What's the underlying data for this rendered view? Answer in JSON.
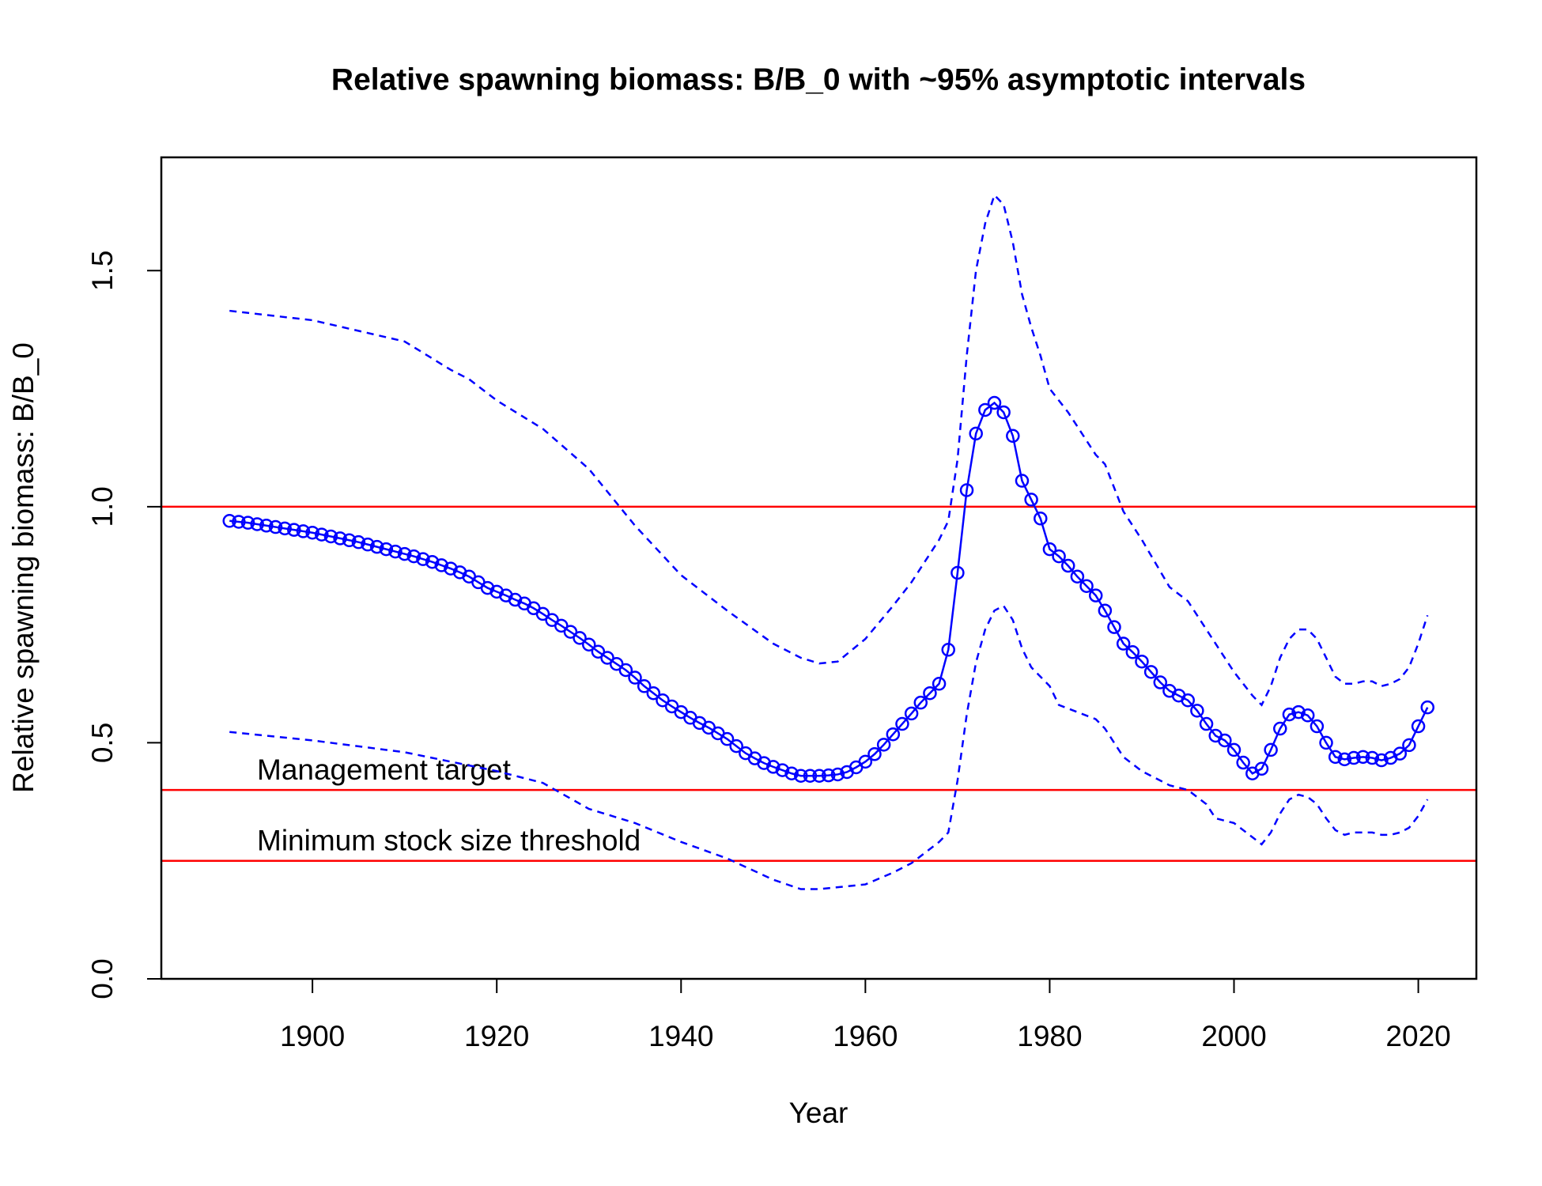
{
  "chart_data": {
    "type": "line",
    "title": "Relative spawning biomass: B/B_0 with ~95% asymptotic intervals",
    "xlabel": "Year",
    "ylabel": "Relative spawning biomass: B/B_0",
    "xlim": [
      1883.6,
      2026.3
    ],
    "ylim": [
      0,
      1.74
    ],
    "xticks": [
      1900,
      1920,
      1940,
      1960,
      1980,
      2000,
      2020
    ],
    "yticks": [
      {
        "value": 0,
        "label": "0.0"
      },
      0.5,
      {
        "value": 1,
        "label": "1.0"
      },
      1.5
    ],
    "hlines": [
      {
        "value": 1,
        "color": "#ff0000"
      },
      {
        "value": 0.4,
        "color": "#ff0000",
        "label": "Management target"
      },
      {
        "value": 0.25,
        "color": "#ff0000",
        "label": "Minimum stock size threshold"
      }
    ],
    "series": [
      {
        "color": "#0000ff",
        "style": "points-line",
        "x": [
          1891,
          1892,
          1893,
          1894,
          1895,
          1896,
          1897,
          1898,
          1899,
          1900,
          1901,
          1902,
          1903,
          1904,
          1905,
          1906,
          1907,
          1908,
          1909,
          1910,
          1911,
          1912,
          1913,
          1914,
          1915,
          1916,
          1917,
          1918,
          1919,
          1920,
          1921,
          1922,
          1923,
          1924,
          1925,
          1926,
          1927,
          1928,
          1929,
          1930,
          1931,
          1932,
          1933,
          1934,
          1935,
          1936,
          1937,
          1938,
          1939,
          1940,
          1941,
          1942,
          1943,
          1944,
          1945,
          1946,
          1947,
          1948,
          1949,
          1950,
          1951,
          1952,
          1953,
          1954,
          1955,
          1956,
          1957,
          1958,
          1959,
          1960,
          1961,
          1962,
          1963,
          1964,
          1965,
          1966,
          1967,
          1968,
          1969,
          1970,
          1971,
          1972,
          1973,
          1974,
          1975,
          1976,
          1977,
          1978,
          1979,
          1980,
          1981,
          1982,
          1983,
          1984,
          1985,
          1986,
          1987,
          1988,
          1989,
          1990,
          1991,
          1992,
          1993,
          1994,
          1995,
          1996,
          1997,
          1998,
          1999,
          2000,
          2001,
          2002,
          2003,
          2004,
          2005,
          2006,
          2007,
          2008,
          2009,
          2010,
          2011,
          2012,
          2013,
          2014,
          2015,
          2016,
          2017,
          2018,
          2019,
          2020,
          2021
        ],
        "values": [
          0.97,
          0.968,
          0.966,
          0.963,
          0.96,
          0.957,
          0.954,
          0.951,
          0.948,
          0.945,
          0.941,
          0.937,
          0.933,
          0.929,
          0.925,
          0.92,
          0.915,
          0.91,
          0.905,
          0.9,
          0.895,
          0.889,
          0.883,
          0.876,
          0.869,
          0.861,
          0.852,
          0.84,
          0.828,
          0.82,
          0.812,
          0.803,
          0.795,
          0.785,
          0.773,
          0.76,
          0.748,
          0.735,
          0.722,
          0.708,
          0.693,
          0.68,
          0.667,
          0.654,
          0.638,
          0.62,
          0.605,
          0.59,
          0.577,
          0.565,
          0.553,
          0.542,
          0.532,
          0.52,
          0.508,
          0.493,
          0.478,
          0.467,
          0.457,
          0.449,
          0.442,
          0.435,
          0.43,
          0.43,
          0.43,
          0.431,
          0.433,
          0.438,
          0.448,
          0.46,
          0.476,
          0.496,
          0.518,
          0.54,
          0.562,
          0.585,
          0.605,
          0.625,
          0.697,
          0.86,
          1.035,
          1.155,
          1.205,
          1.22,
          1.2,
          1.15,
          1.055,
          1.015,
          0.975,
          0.91,
          0.895,
          0.875,
          0.852,
          0.832,
          0.812,
          0.78,
          0.745,
          0.71,
          0.692,
          0.672,
          0.65,
          0.628,
          0.61,
          0.6,
          0.59,
          0.568,
          0.54,
          0.515,
          0.505,
          0.485,
          0.458,
          0.435,
          0.445,
          0.485,
          0.53,
          0.56,
          0.565,
          0.558,
          0.535,
          0.5,
          0.47,
          0.465,
          0.468,
          0.47,
          0.468,
          0.463,
          0.468,
          0.477,
          0.495,
          0.535,
          0.575
        ]
      },
      {
        "color": "#0000ff",
        "style": "dashed",
        "x": [
          1891,
          1900,
          1910,
          1915,
          1917,
          1920,
          1925,
          1930,
          1935,
          1940,
          1945,
          1950,
          1953,
          1955,
          1957,
          1960,
          1963,
          1965,
          1968,
          1969,
          1970,
          1971,
          1972,
          1973,
          1974,
          1975,
          1976,
          1977,
          1978,
          1979,
          1980,
          1982,
          1985,
          1986,
          1987,
          1988,
          1990,
          1993,
          1995,
          1997,
          2000,
          2002,
          2003,
          2004,
          2005,
          2006,
          2007,
          2008,
          2009,
          2010,
          2011,
          2012,
          2013,
          2014,
          2015,
          2016,
          2017,
          2018,
          2019,
          2020,
          2021
        ],
        "values": [
          1.415,
          1.395,
          1.35,
          1.29,
          1.27,
          1.225,
          1.165,
          1.08,
          0.96,
          0.855,
          0.78,
          0.71,
          0.68,
          0.668,
          0.672,
          0.72,
          0.79,
          0.84,
          0.93,
          0.97,
          1.1,
          1.32,
          1.5,
          1.6,
          1.66,
          1.64,
          1.56,
          1.45,
          1.38,
          1.32,
          1.25,
          1.2,
          1.11,
          1.09,
          1.04,
          0.99,
          0.93,
          0.83,
          0.8,
          0.74,
          0.65,
          0.6,
          0.58,
          0.62,
          0.68,
          0.72,
          0.74,
          0.74,
          0.72,
          0.68,
          0.64,
          0.625,
          0.625,
          0.63,
          0.63,
          0.62,
          0.625,
          0.635,
          0.66,
          0.71,
          0.77
        ]
      },
      {
        "color": "#0000ff",
        "style": "dashed",
        "x": [
          1891,
          1900,
          1910,
          1920,
          1925,
          1930,
          1935,
          1940,
          1945,
          1950,
          1953,
          1955,
          1960,
          1963,
          1965,
          1968,
          1969,
          1970,
          1971,
          1972,
          1973,
          1974,
          1975,
          1976,
          1977,
          1978,
          1980,
          1981,
          1985,
          1986,
          1988,
          1990,
          1993,
          1995,
          1997,
          1998,
          2000,
          2002,
          2003,
          2004,
          2005,
          2006,
          2007,
          2008,
          2009,
          2010,
          2011,
          2012,
          2013,
          2014,
          2015,
          2016,
          2017,
          2018,
          2019,
          2020,
          2021
        ],
        "values": [
          0.523,
          0.505,
          0.48,
          0.44,
          0.415,
          0.36,
          0.33,
          0.29,
          0.255,
          0.21,
          0.19,
          0.19,
          0.2,
          0.225,
          0.245,
          0.29,
          0.31,
          0.42,
          0.56,
          0.67,
          0.74,
          0.78,
          0.79,
          0.76,
          0.7,
          0.66,
          0.62,
          0.58,
          0.55,
          0.53,
          0.47,
          0.44,
          0.41,
          0.4,
          0.37,
          0.34,
          0.33,
          0.3,
          0.285,
          0.31,
          0.35,
          0.38,
          0.39,
          0.385,
          0.37,
          0.34,
          0.315,
          0.305,
          0.31,
          0.31,
          0.31,
          0.305,
          0.305,
          0.31,
          0.32,
          0.345,
          0.38
        ]
      }
    ]
  }
}
